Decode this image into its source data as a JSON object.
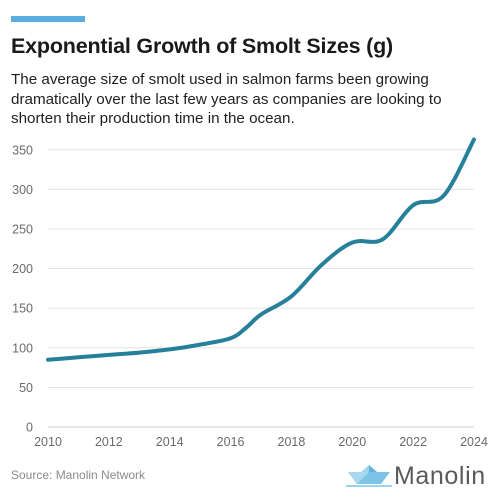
{
  "header": {
    "title": "Exponential Growth of Smolt Sizes (g)",
    "subtitle": "The average size of smolt used in salmon farms been growing dramatically over the last few years as companies are looking to shorten their production time in the ocean."
  },
  "footer": {
    "source": "Source: Manolin Network",
    "brand": "Manolin"
  },
  "colors": {
    "accent": "#5aaee0",
    "line": "#27809a",
    "grid": "#e3e3e3",
    "axis_text": "#6b6b6b",
    "logo_blue": "#7cc3e6"
  },
  "icons": {
    "logo": "paper-boat-icon"
  },
  "chart_data": {
    "type": "line",
    "x": [
      2010,
      2011,
      2012,
      2013,
      2014,
      2015,
      2016,
      2016.5,
      2017,
      2018,
      2019,
      2020,
      2021,
      2022,
      2023,
      2024
    ],
    "series": [
      {
        "values": [
          85,
          88,
          91,
          94,
          98,
          104,
          112,
          125,
          142,
          165,
          205,
          233,
          237,
          280,
          292,
          363
        ]
      }
    ],
    "xticks": [
      "2010",
      "2012",
      "2014",
      "2016",
      "2018",
      "2020",
      "2022",
      "2024"
    ],
    "yticks": [
      "0",
      "50",
      "100",
      "150",
      "200",
      "250",
      "300",
      "350"
    ],
    "xlim": [
      2010,
      2024
    ],
    "ylim": [
      0,
      375
    ],
    "grid": "horizontal"
  }
}
